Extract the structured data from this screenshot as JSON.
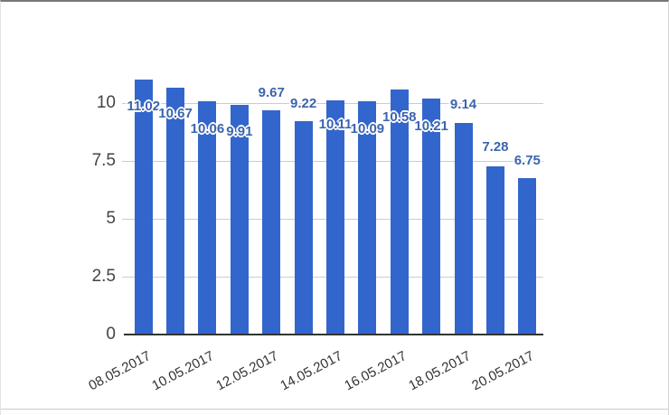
{
  "window": {
    "background": "#ffffff"
  },
  "chart_data": {
    "type": "bar",
    "title": "",
    "xlabel": "",
    "ylabel": "",
    "legend": "none",
    "grid": true,
    "bar_color": "#3366cc",
    "annotation_color": "#3c64ad",
    "gridline_color": "#cccccc",
    "baseline_color": "#333333",
    "axis_text_color": "#444444",
    "ylim": [
      0,
      11.4
    ],
    "y_ticks": [
      "0",
      "2.5",
      "5",
      "7.5",
      "10"
    ],
    "y_tick_values": [
      0,
      2.5,
      5,
      7.5,
      10
    ],
    "x_tick_labels": [
      "08.05.2017",
      "10.05.2017",
      "12.05.2017",
      "14.05.2017",
      "16.05.2017",
      "18.05.2017",
      "20.05.2017"
    ],
    "x_tick_every": 2,
    "values": [
      11.02,
      10.67,
      10.06,
      9.91,
      9.67,
      9.22,
      10.11,
      10.09,
      10.58,
      10.21,
      9.14,
      7.28,
      6.75
    ],
    "bar_labels": [
      "11.02",
      "10.67",
      "10.06",
      "9.91",
      "9.67",
      "9.22",
      "10.11",
      "10.09",
      "10.58",
      "10.21",
      "9.14",
      "7.28",
      "6.75"
    ],
    "label_placement": [
      "inside",
      "inside",
      "inside",
      "inside",
      "above",
      "above",
      "inside",
      "inside",
      "inside",
      "inside",
      "above",
      "above",
      "above"
    ],
    "label_dy": [
      29,
      28,
      30,
      29,
      -20,
      -20,
      26,
      30,
      30,
      30,
      -21,
      -22,
      -20
    ]
  }
}
